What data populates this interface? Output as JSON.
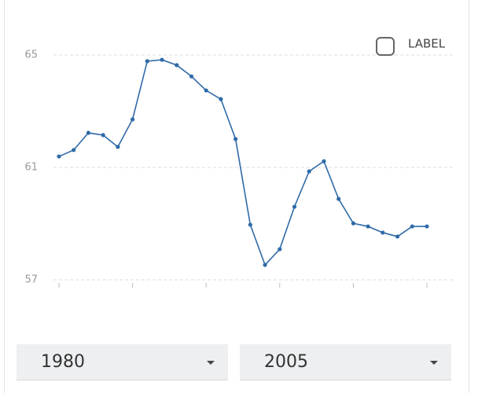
{
  "chart_data": {
    "type": "line",
    "x": [
      1980,
      1981,
      1982,
      1983,
      1984,
      1985,
      1986,
      1987,
      1988,
      1989,
      1990,
      1991,
      1992,
      1993,
      1994,
      1995,
      1996,
      1997,
      1998,
      1999,
      2000,
      2001,
      2002,
      2003,
      2004,
      2005
    ],
    "series": [
      {
        "name": "LABEL",
        "color": "#2f6aa8",
        "values": [
          61.39,
          61.62,
          62.23,
          62.15,
          61.73,
          62.71,
          64.78,
          64.83,
          64.64,
          64.24,
          63.74,
          63.43,
          62.01,
          58.96,
          57.53,
          58.09,
          59.6,
          60.86,
          61.22,
          59.88,
          59.01,
          58.9,
          58.68,
          58.54,
          58.9,
          58.9
        ]
      }
    ],
    "xlim": [
      1980,
      2005
    ],
    "xticks": [
      1980,
      1985,
      1990,
      1995,
      2000,
      2005
    ],
    "ylim": [
      57,
      65
    ],
    "yticks": [
      57,
      61,
      65
    ],
    "grid": true,
    "legend": "top-right"
  },
  "controls": {
    "start": "1980",
    "end": "2005"
  }
}
